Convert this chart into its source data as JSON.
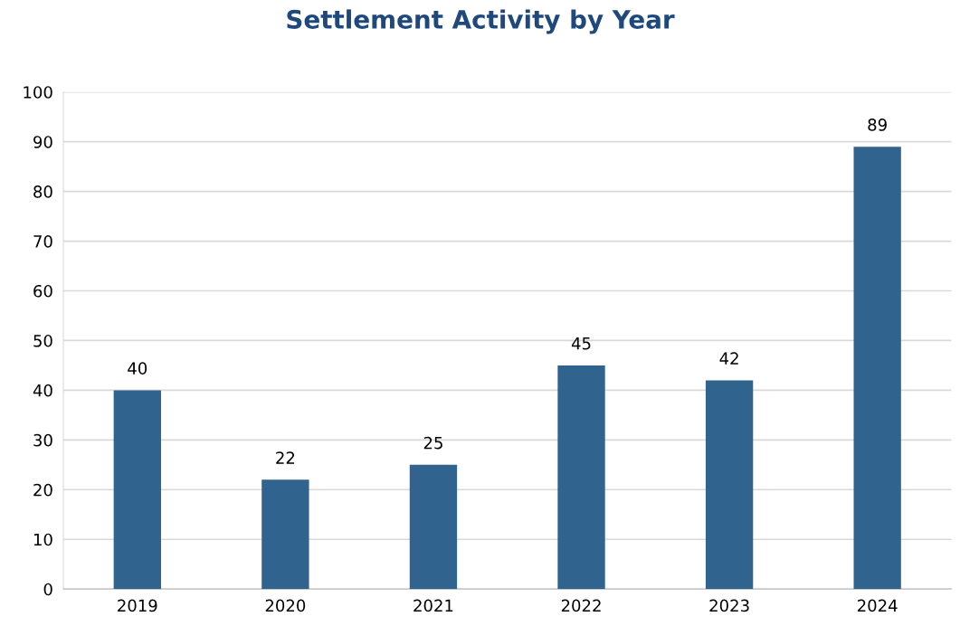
{
  "chart_data": {
    "type": "bar",
    "title": "Settlement Activity by Year",
    "categories": [
      "2019",
      "2020",
      "2021",
      "2022",
      "2023",
      "2024"
    ],
    "values": [
      40,
      22,
      25,
      45,
      42,
      89
    ],
    "color": "#31638f",
    "ylim": [
      0,
      100
    ],
    "yticks": [
      0,
      10,
      20,
      30,
      40,
      50,
      60,
      70,
      80,
      90,
      100
    ],
    "grid": "y",
    "data_labels": true
  }
}
